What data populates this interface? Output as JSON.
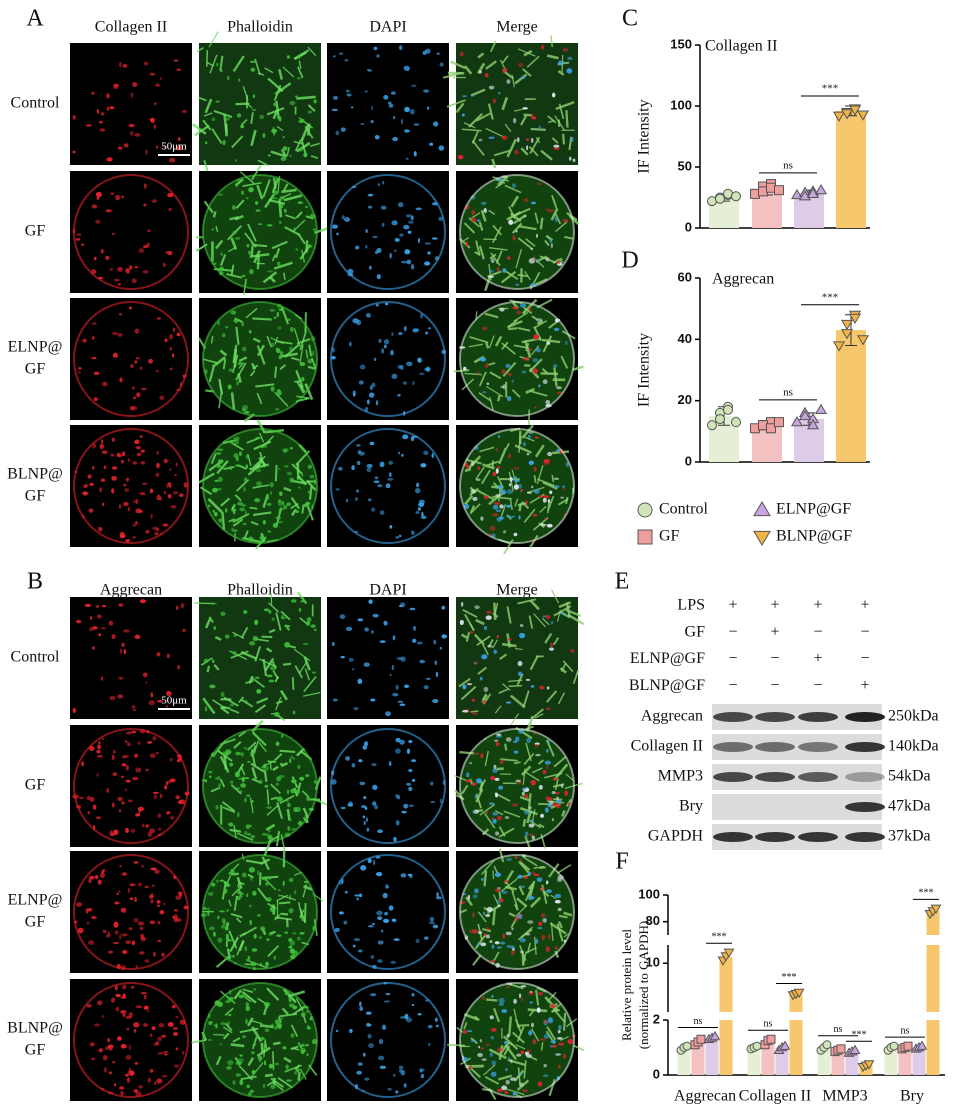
{
  "panel_a": {
    "label": "A",
    "columns": [
      "Collagen II",
      "Phalloidin",
      "DAPI",
      "Merge"
    ],
    "rows": [
      [
        "Control"
      ],
      [
        "GF"
      ],
      [
        "ELNP@",
        "GF"
      ],
      [
        "BLNP@",
        "GF"
      ]
    ],
    "scale_bar": "50μm"
  },
  "panel_b": {
    "label": "B",
    "columns": [
      "Aggrecan",
      "Phalloidin",
      "DAPI",
      "Merge"
    ],
    "rows": [
      [
        "Control"
      ],
      [
        "GF"
      ],
      [
        "ELNP@",
        "GF"
      ],
      [
        "BLNP@",
        "GF"
      ]
    ],
    "scale_bar": "50μm"
  },
  "legend": {
    "entries": [
      {
        "name": "Control",
        "color": "#e4efd5",
        "marker": "circle",
        "marker_color": "#cfe5b8"
      },
      {
        "name": "GF",
        "color": "#f3c1c1",
        "marker": "square",
        "marker_color": "#ef9e9e"
      },
      {
        "name": "ELNP@GF",
        "color": "#ddcbe8",
        "marker": "triangle-up",
        "marker_color": "#c6a6dc"
      },
      {
        "name": "BLNP@GF",
        "color": "#f6c76c",
        "marker": "triangle-down",
        "marker_color": "#f1b446"
      }
    ]
  },
  "chart_data": [
    {
      "label": "C",
      "type": "bar",
      "title": "Collagen II",
      "y_label": "IF Intensity",
      "values": [
        25,
        32,
        28,
        96
      ],
      "errors": [
        3,
        5,
        3,
        4
      ],
      "points": [
        [
          22,
          25,
          27,
          24,
          28,
          26
        ],
        [
          28,
          34,
          36,
          30,
          33,
          31
        ],
        [
          27,
          29,
          30,
          26,
          28,
          31
        ],
        [
          92,
          95,
          98,
          94,
          97,
          93
        ]
      ],
      "ylim": [
        0,
        150
      ],
      "yticks": [
        0,
        50,
        100,
        150
      ],
      "annotations": [
        {
          "text": "ns",
          "between": [
            1,
            2
          ]
        },
        {
          "text": "***",
          "between": [
            2,
            3
          ]
        }
      ]
    },
    {
      "label": "D",
      "type": "bar",
      "title": "Aggrecan",
      "y_label": "IF Intensity",
      "values": [
        15,
        12,
        14,
        43
      ],
      "errors": [
        3,
        1.5,
        2,
        5
      ],
      "points": [
        [
          12,
          16,
          18,
          14,
          17,
          13
        ],
        [
          11,
          12,
          13,
          12,
          11,
          13
        ],
        [
          13,
          16,
          14,
          15,
          12,
          17
        ],
        [
          38,
          45,
          48,
          42,
          47,
          40
        ]
      ],
      "ylim": [
        0,
        60
      ],
      "yticks": [
        0,
        20,
        40,
        60
      ],
      "annotations": [
        {
          "text": "ns",
          "between": [
            1,
            2
          ]
        },
        {
          "text": "***",
          "between": [
            2,
            3
          ]
        }
      ]
    },
    {
      "label": "F",
      "type": "grouped_bar",
      "y_label": [
        "Relative protein level",
        "(normalized to GAPDH)"
      ],
      "categories": [
        "Aggrecan",
        "Collagen II",
        "MMP3",
        "Bry"
      ],
      "series": [
        {
          "values": [
            1,
            1,
            1,
            1
          ],
          "points": [
            [
              0.9,
              1,
              1.05
            ],
            [
              0.95,
              1,
              1.05
            ],
            [
              0.9,
              1,
              1.1
            ],
            [
              0.9,
              1,
              1.05
            ]
          ]
        },
        {
          "values": [
            1.2,
            1.2,
            0.9,
            1
          ],
          "points": [
            [
              1.1,
              1.2,
              1.3
            ],
            [
              1.1,
              1.25,
              1.3
            ],
            [
              0.85,
              0.9,
              0.95
            ],
            [
              0.95,
              1,
              1.05
            ]
          ]
        },
        {
          "values": [
            1.35,
            1,
            0.85,
            1
          ],
          "points": [
            [
              1.3,
              1.35,
              1.4
            ],
            [
              0.9,
              1,
              1.05
            ],
            [
              0.8,
              0.85,
              0.9
            ],
            [
              0.95,
              1,
              1.05
            ]
          ]
        },
        {
          "values": [
            11,
            5,
            0.35,
            88
          ],
          "points": [
            [
              10.5,
              11.2,
              11.8
            ],
            [
              4.8,
              5,
              5.2
            ],
            [
              0.3,
              0.35,
              0.4
            ],
            [
              86,
              88,
              90
            ]
          ]
        }
      ],
      "y_segments": [
        {
          "ylim": [
            0,
            2
          ],
          "yticks": [
            0,
            2
          ]
        },
        {
          "ylim": [
            2,
            13
          ],
          "yticks": [
            10
          ]
        },
        {
          "ylim": [
            70,
            100
          ],
          "yticks": [
            80,
            100
          ]
        }
      ],
      "annotations": [
        {
          "text": "ns",
          "category": 0,
          "between": [
            0,
            2
          ]
        },
        {
          "text": "***",
          "category": 0,
          "between": [
            2,
            3
          ]
        },
        {
          "text": "ns",
          "category": 1,
          "between": [
            0,
            2
          ]
        },
        {
          "text": "***",
          "category": 1,
          "between": [
            2,
            3
          ]
        },
        {
          "text": "ns",
          "category": 2,
          "between": [
            0,
            2
          ]
        },
        {
          "text": "***",
          "category": 2,
          "between": [
            2,
            3
          ]
        },
        {
          "text": "ns",
          "category": 3,
          "between": [
            0,
            2
          ]
        },
        {
          "text": "***",
          "category": 3,
          "between": [
            2,
            3
          ]
        }
      ]
    }
  ],
  "panel_e": {
    "label": "E",
    "treatments": [
      {
        "name": "LPS",
        "signs": [
          "+",
          "+",
          "+",
          "+"
        ]
      },
      {
        "name": "GF",
        "signs": [
          "−",
          "+",
          "−",
          "−"
        ]
      },
      {
        "name": "ELNP@GF",
        "signs": [
          "−",
          "−",
          "+",
          "−"
        ]
      },
      {
        "name": "BLNP@GF",
        "signs": [
          "−",
          "−",
          "−",
          "+"
        ]
      }
    ],
    "blots": [
      {
        "name": "Aggrecan",
        "size": "250kDa"
      },
      {
        "name": "Collagen II",
        "size": "140kDa"
      },
      {
        "name": "MMP3",
        "size": "54kDa"
      },
      {
        "name": "Bry",
        "size": "47kDa"
      },
      {
        "name": "GAPDH",
        "size": "37kDa"
      }
    ]
  }
}
